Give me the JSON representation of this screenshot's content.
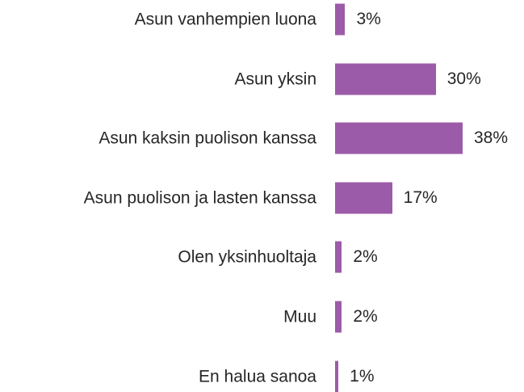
{
  "chart_data": {
    "type": "bar",
    "orientation": "horizontal",
    "categories": [
      "Asun vanhempien luona",
      "Asun yksin",
      "Asun kaksin puolison kanssa",
      "Asun puolison ja lasten kanssa",
      "Olen yksinhuoltaja",
      "Muu",
      "En halua sanoa"
    ],
    "values": [
      3,
      30,
      38,
      17,
      2,
      2,
      1
    ],
    "value_labels": [
      "3%",
      "30%",
      "38%",
      "17%",
      "2%",
      "2%",
      "1%"
    ],
    "color": "#9c5ba8"
  }
}
